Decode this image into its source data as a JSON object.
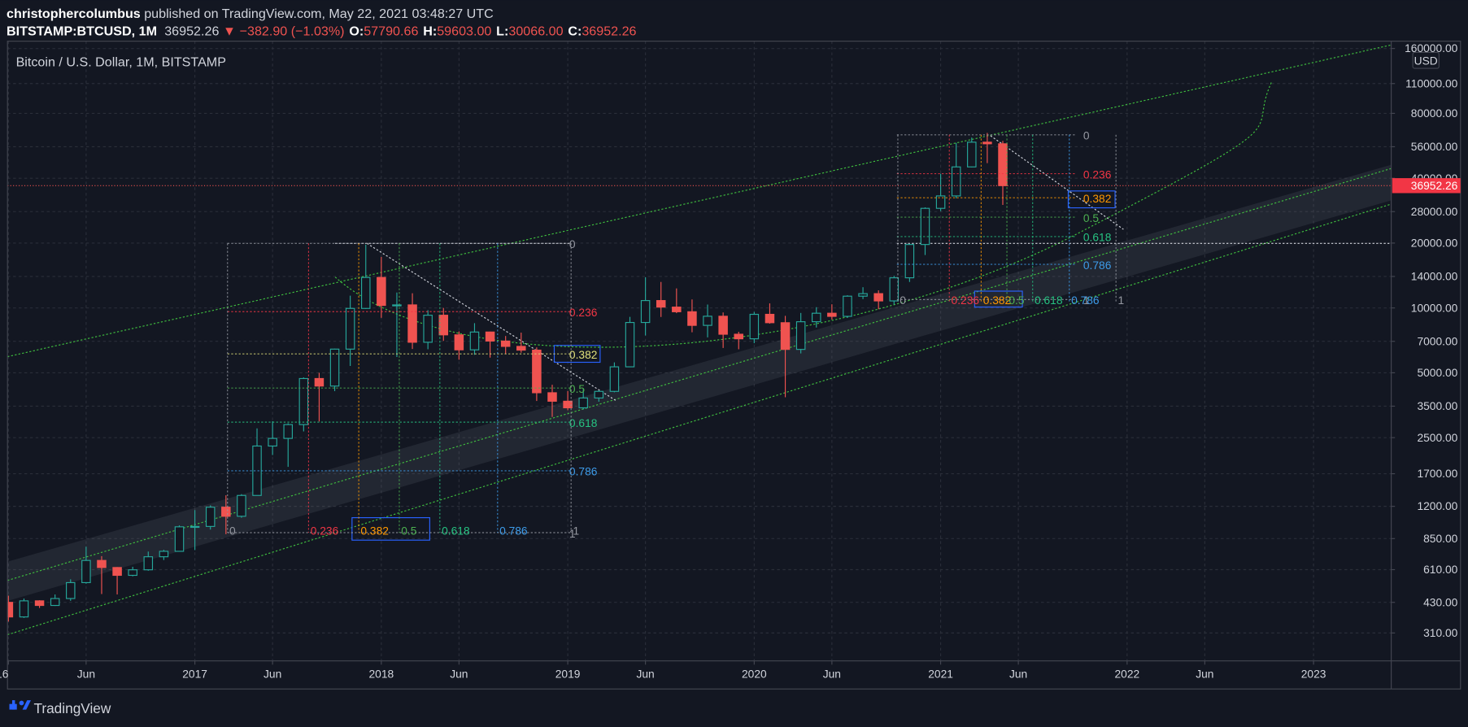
{
  "header": {
    "author": "christophercolumbus",
    "published": " published on TradingView.com, May 22, 2021 03:48:27 UTC",
    "symbol": "BITSTAMP:BTCUSD, 1M",
    "last": "36952.26",
    "arrow": "▼",
    "change": "−382.90 (−1.03%)",
    "ohlc": [
      {
        "key": "O:",
        "value": "57790.66"
      },
      {
        "key": "H:",
        "value": "59603.00"
      },
      {
        "key": "L:",
        "value": "30066.00"
      },
      {
        "key": "C:",
        "value": "36952.26"
      }
    ]
  },
  "footer": {
    "brand": "TradingView"
  },
  "chart_data": {
    "type": "candlestick",
    "title": "Bitcoin / U.S. Dollar, 1M, BITSTAMP",
    "currency": "USD",
    "up_color": "#26a69a",
    "down_color": "#ef5350",
    "log": true,
    "grid": true,
    "x": [
      "2016-01",
      "2016-02",
      "2016-03",
      "2016-04",
      "2016-05",
      "2016-06",
      "2016-07",
      "2016-08",
      "2016-09",
      "2016-10",
      "2016-11",
      "2016-12",
      "2017-01",
      "2017-02",
      "2017-03",
      "2017-04",
      "2017-05",
      "2017-06",
      "2017-07",
      "2017-08",
      "2017-09",
      "2017-10",
      "2017-11",
      "2017-12",
      "2018-01",
      "2018-02",
      "2018-03",
      "2018-04",
      "2018-05",
      "2018-06",
      "2018-07",
      "2018-08",
      "2018-09",
      "2018-10",
      "2018-11",
      "2018-12",
      "2019-01",
      "2019-02",
      "2019-03",
      "2019-04",
      "2019-05",
      "2019-06",
      "2019-07",
      "2019-08",
      "2019-09",
      "2019-10",
      "2019-11",
      "2019-12",
      "2020-01",
      "2020-02",
      "2020-03",
      "2020-04",
      "2020-05",
      "2020-06",
      "2020-07",
      "2020-08",
      "2020-09",
      "2020-10",
      "2020-11",
      "2020-12",
      "2021-01",
      "2021-02",
      "2021-03",
      "2021-04",
      "2021-05"
    ],
    "open": [
      430,
      368,
      437,
      416,
      448,
      531,
      673,
      624,
      574,
      609,
      700,
      742,
      964,
      968,
      1189,
      1079,
      1348,
      2286,
      2480,
      2875,
      4703,
      4339,
      6440,
      9950,
      13850,
      10270,
      10330,
      6930,
      9250,
      7500,
      6390,
      7730,
      7020,
      6630,
      6370,
      4040,
      3690,
      3440,
      3820,
      4100,
      5330,
      8560,
      10820,
      10090,
      9600,
      8300,
      9150,
      7550,
      7190,
      9340,
      8540,
      6420,
      8630,
      9450,
      9140,
      11340,
      11650,
      10780,
      13800,
      19700,
      28990,
      33110,
      45140,
      58800,
      57790.66
    ],
    "high": [
      462,
      448,
      440,
      468,
      550,
      780,
      705,
      627,
      629,
      740,
      754,
      979,
      1153,
      1212,
      1350,
      1367,
      2760,
      2980,
      2915,
      4760,
      5000,
      6470,
      11400,
      19666,
      17250,
      11790,
      11700,
      9760,
      10000,
      7780,
      8500,
      7760,
      7410,
      7680,
      6560,
      4400,
      4110,
      4200,
      4140,
      5590,
      9090,
      13880,
      13200,
      12320,
      10950,
      10370,
      9530,
      7750,
      9580,
      10500,
      9190,
      9480,
      10080,
      10400,
      11450,
      12480,
      12070,
      14100,
      19870,
      29300,
      41950,
      58350,
      61780,
      64900,
      59603
    ],
    "low": [
      350,
      364,
      405,
      414,
      437,
      525,
      470,
      468,
      568,
      603,
      676,
      740,
      752,
      936,
      891,
      1062,
      1348,
      2076,
      1830,
      2672,
      2972,
      4110,
      5380,
      9900,
      9000,
      5920,
      6450,
      6430,
      7030,
      5750,
      6060,
      5880,
      6110,
      6200,
      3700,
      3120,
      3350,
      3380,
      3670,
      4060,
      5330,
      7450,
      9080,
      9460,
      7710,
      7300,
      6520,
      6430,
      6860,
      8450,
      3850,
      6150,
      8110,
      8830,
      8990,
      10990,
      9860,
      10380,
      13200,
      17600,
      28130,
      32300,
      44960,
      47000,
      30066
    ],
    "close": [
      368,
      437,
      416,
      448,
      531,
      673,
      624,
      574,
      609,
      700,
      742,
      964,
      968,
      1189,
      1079,
      1348,
      2286,
      2480,
      2875,
      4703,
      4339,
      6440,
      9950,
      13850,
      10270,
      10330,
      6930,
      9250,
      7500,
      6390,
      7730,
      7020,
      6630,
      6370,
      4040,
      3690,
      3440,
      3820,
      4100,
      5330,
      8560,
      10820,
      10090,
      9600,
      8300,
      9150,
      7550,
      7190,
      9340,
      8540,
      6420,
      8630,
      9450,
      9140,
      11340,
      11650,
      10780,
      13800,
      19700,
      28990,
      33110,
      45140,
      58800,
      57790.66,
      36952.26
    ],
    "xlim": [
      "2016-01",
      "2023-06"
    ],
    "xticks": [
      {
        "value": "2016-01",
        "label": "16"
      },
      {
        "value": "2016-06",
        "label": "Jun"
      },
      {
        "value": "2017-01",
        "label": "2017"
      },
      {
        "value": "2017-06",
        "label": "Jun"
      },
      {
        "value": "2018-01",
        "label": "2018"
      },
      {
        "value": "2018-06",
        "label": "Jun"
      },
      {
        "value": "2019-01",
        "label": "2019"
      },
      {
        "value": "2019-06",
        "label": "Jun"
      },
      {
        "value": "2020-01",
        "label": "2020"
      },
      {
        "value": "2020-06",
        "label": "Jun"
      },
      {
        "value": "2021-01",
        "label": "2021"
      },
      {
        "value": "2021-06",
        "label": "Jun"
      },
      {
        "value": "2022-01",
        "label": "2022"
      },
      {
        "value": "2022-06",
        "label": "Jun"
      },
      {
        "value": "2023-01",
        "label": "2023"
      }
    ],
    "ylim": [
      230,
      173000
    ],
    "yticks": [
      {
        "value": 160000,
        "label": "160000.00"
      },
      {
        "value": 110000,
        "label": "110000.00"
      },
      {
        "value": 80000,
        "label": "80000.00"
      },
      {
        "value": 56000,
        "label": "56000.00"
      },
      {
        "value": 40000,
        "label": "40000.00"
      },
      {
        "value": 28000,
        "label": "28000.00"
      },
      {
        "value": 20000,
        "label": "20000.00"
      },
      {
        "value": 14000,
        "label": "14000.00"
      },
      {
        "value": 10000,
        "label": "10000.00"
      },
      {
        "value": 7000,
        "label": "7000.00"
      },
      {
        "value": 5000,
        "label": "5000.00"
      },
      {
        "value": 3500,
        "label": "3500.00"
      },
      {
        "value": 2500,
        "label": "2500.00"
      },
      {
        "value": 1700,
        "label": "1700.00"
      },
      {
        "value": 1200,
        "label": "1200.00"
      },
      {
        "value": 850,
        "label": "850.00"
      },
      {
        "value": 610,
        "label": "610.00"
      },
      {
        "value": 430,
        "label": "430.00"
      },
      {
        "value": 310,
        "label": "310.00"
      }
    ],
    "annotations": [
      {
        "type": "fib_retracement",
        "levels": [
          0,
          0.236,
          0.382,
          0.5,
          0.618,
          0.786,
          1
        ],
        "colors": [
          "#9598a1",
          "#f23645",
          "#e0e07a",
          "#4caf50",
          "#26c281",
          "#3d9be9",
          "#9598a1"
        ]
      },
      {
        "type": "fib_time",
        "levels": [
          0,
          0.236,
          0.382,
          0.5,
          0.618,
          0.786,
          1
        ],
        "colors": [
          "#9598a1",
          "#f23645",
          "#ff9800",
          "#4caf50",
          "#26c281",
          "#3d9be9",
          "#9598a1"
        ]
      },
      {
        "type": "fib_retracement",
        "levels": [
          0,
          0.236,
          0.382,
          0.5,
          0.618,
          0.786,
          1
        ],
        "colors": [
          "#9598a1",
          "#f23645",
          "#ff9800",
          "#4caf50",
          "#26c281",
          "#3d9be9",
          "#9598a1"
        ]
      },
      {
        "type": "fib_time",
        "levels": [
          0,
          0.236,
          0.382,
          0.5,
          0.618,
          0.786,
          1
        ],
        "colors": [
          "#9598a1",
          "#f23645",
          "#ff9800",
          "#4caf50",
          "#26c281",
          "#3d9be9",
          "#9598a1"
        ]
      }
    ]
  }
}
